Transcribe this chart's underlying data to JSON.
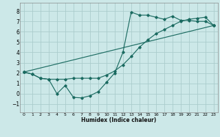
{
  "xlabel": "Humidex (Indice chaleur)",
  "bg_color": "#cce8e8",
  "grid_color": "#aacccc",
  "line_color": "#1a6a60",
  "xlim": [
    -0.5,
    23.5
  ],
  "ylim": [
    -1.8,
    8.8
  ],
  "xticks": [
    0,
    1,
    2,
    3,
    4,
    5,
    6,
    7,
    8,
    9,
    10,
    11,
    12,
    13,
    14,
    15,
    16,
    17,
    18,
    19,
    20,
    21,
    22,
    23
  ],
  "yticks": [
    -1,
    0,
    1,
    2,
    3,
    4,
    5,
    6,
    7,
    8
  ],
  "series1_x": [
    0,
    1,
    2,
    3,
    4,
    5,
    6,
    7,
    8,
    9,
    10,
    11,
    12,
    13,
    14,
    15,
    16,
    17,
    18,
    19,
    20,
    21,
    22,
    23
  ],
  "series1_y": [
    2.1,
    1.9,
    1.5,
    1.4,
    0.0,
    0.8,
    -0.35,
    -0.4,
    -0.2,
    0.2,
    1.1,
    2.0,
    4.0,
    7.9,
    7.6,
    7.6,
    7.4,
    7.2,
    7.5,
    7.1,
    7.1,
    7.0,
    7.0,
    6.6
  ],
  "series2_x": [
    0,
    1,
    2,
    3,
    4,
    5,
    6,
    7,
    8,
    9,
    10,
    11,
    12,
    13,
    14,
    15,
    16,
    17,
    18,
    19,
    20,
    21,
    22,
    23
  ],
  "series2_y": [
    2.1,
    1.9,
    1.5,
    1.4,
    1.4,
    1.4,
    1.5,
    1.5,
    1.5,
    1.5,
    1.8,
    2.2,
    2.8,
    3.6,
    4.5,
    5.2,
    5.8,
    6.2,
    6.6,
    7.0,
    7.2,
    7.3,
    7.4,
    6.6
  ],
  "series3_x": [
    0,
    23
  ],
  "series3_y": [
    2.1,
    6.6
  ]
}
